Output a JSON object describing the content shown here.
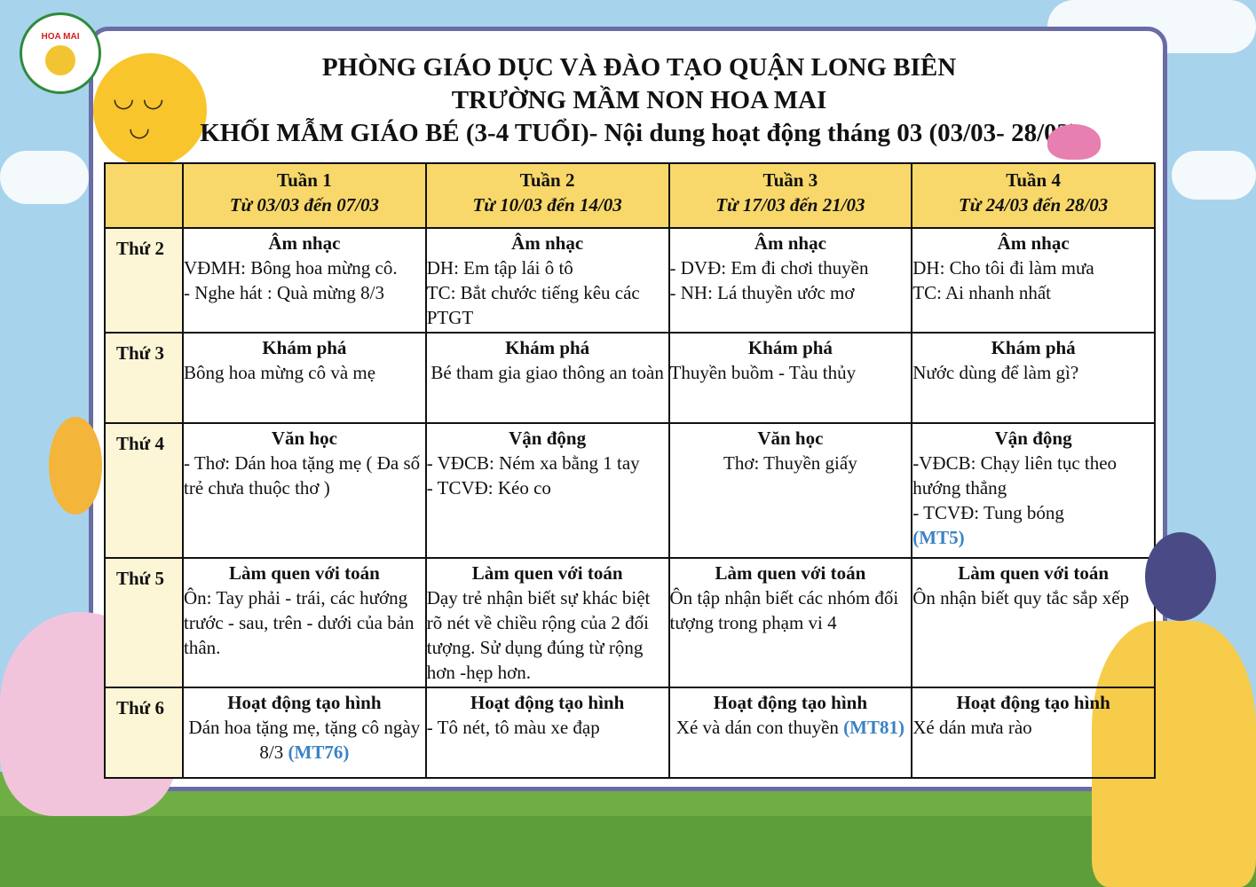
{
  "logo": {
    "text": "TRƯỜNG MẦM NON HOA MAI",
    "label": "HOA MAI"
  },
  "header": {
    "line1": "PHÒNG GIÁO DỤC VÀ ĐÀO TẠO QUẬN LONG BIÊN",
    "line2": "TRƯỜNG MẦM NON HOA MAI",
    "line3": "KHỐI MẪM GIÁO BÉ (3-4 TUỔI)- Nội dung hoạt động tháng 03 (03/03- 28/03)"
  },
  "weeks": [
    {
      "name": "Tuần 1",
      "range": "Từ 03/03 đến 07/03"
    },
    {
      "name": "Tuần 2",
      "range": "Từ 10/03 đến 14/03"
    },
    {
      "name": "Tuần 3",
      "range": "Từ 17/03 đến 21/03"
    },
    {
      "name": "Tuần 4",
      "range": "Từ 24/03 đến 28/03"
    }
  ],
  "rows": [
    {
      "day": "Thứ 2",
      "cells": [
        {
          "title": "Âm nhạc",
          "lines": [
            "VĐMH: Bông hoa mừng cô.",
            "- Nghe hát : Quà mừng 8/3"
          ]
        },
        {
          "title": "Âm nhạc",
          "lines": [
            "DH: Em tập lái ô tô",
            "TC: Bắt chước tiếng kêu các PTGT"
          ]
        },
        {
          "title": "Âm nhạc",
          "lines": [
            "- DVĐ: Em đi chơi thuyền",
            "- NH: Lá thuyền ước mơ"
          ]
        },
        {
          "title": "Âm nhạc",
          "lines": [
            "DH: Cho tôi đi làm mưa",
            "TC: Ai nhanh nhất"
          ]
        }
      ]
    },
    {
      "day": "Thứ 3",
      "cells": [
        {
          "title": "Khám phá",
          "lines": [
            "Bông hoa mừng cô và mẹ"
          ]
        },
        {
          "title": "Khám phá",
          "lines": [
            "Bé tham gia giao thông an toàn"
          ]
        },
        {
          "title": "Khám phá",
          "lines": [
            "Thuyền buồm - Tàu thủy"
          ]
        },
        {
          "title": "Khám phá",
          "lines": [
            "Nước dùng để làm gì?"
          ]
        }
      ]
    },
    {
      "day": "Thứ 4",
      "cells": [
        {
          "title": "Văn học",
          "lines": [
            "- Thơ: Dán hoa tặng mẹ ( Đa số trẻ chưa thuộc thơ )"
          ]
        },
        {
          "title": "Vận động",
          "lines": [
            "- VĐCB: Ném xa bằng 1 tay",
            "- TCVĐ: Kéo co"
          ]
        },
        {
          "title": "Văn học",
          "lines": [
            "Thơ: Thuyền giấy"
          ]
        },
        {
          "title": "Vận động",
          "lines": [
            "-VĐCB: Chạy liên tục theo hướng thẳng",
            "- TCVĐ: Tung bóng"
          ],
          "code": "(MT5)"
        }
      ]
    },
    {
      "day": "Thứ 5",
      "cells": [
        {
          "title": "Làm quen với toán",
          "lines": [
            "Ôn: Tay phải - trái, các hướng trước - sau, trên - dưới của bản thân."
          ]
        },
        {
          "title": "Làm quen với toán",
          "lines": [
            "Dạy trẻ nhận biết sự khác biệt rõ nét về chiều rộng của 2 đối tượng. Sử dụng đúng từ rộng hơn -hẹp hơn."
          ]
        },
        {
          "title": "Làm quen với toán",
          "lines": [
            "Ôn tập nhận biết các nhóm đối tượng trong phạm vi 4"
          ]
        },
        {
          "title": "Làm quen với toán",
          "lines": [
            "Ôn nhận biết quy tắc sắp xếp"
          ]
        }
      ]
    },
    {
      "day": "Thứ 6",
      "cells": [
        {
          "title": "Hoạt động tạo hình",
          "lines": [
            "Dán hoa tặng mẹ, tặng cô ngày 8/3"
          ],
          "code": "(MT76)"
        },
        {
          "title": "Hoạt động tạo hình",
          "lines": [
            "- Tô nét, tô màu xe đạp"
          ]
        },
        {
          "title": "Hoạt động tạo hình",
          "lines": [
            "Xé và dán con thuyền"
          ],
          "code": "(MT81)"
        },
        {
          "title": "Hoạt động tạo hình",
          "lines": [
            "Xé dán mưa rào"
          ]
        }
      ]
    }
  ],
  "colors": {
    "header_bg": "#f8d86a",
    "day_bg": "#fdf6d6",
    "code": "#3b82c4",
    "panel_border": "#6a6ca6"
  }
}
